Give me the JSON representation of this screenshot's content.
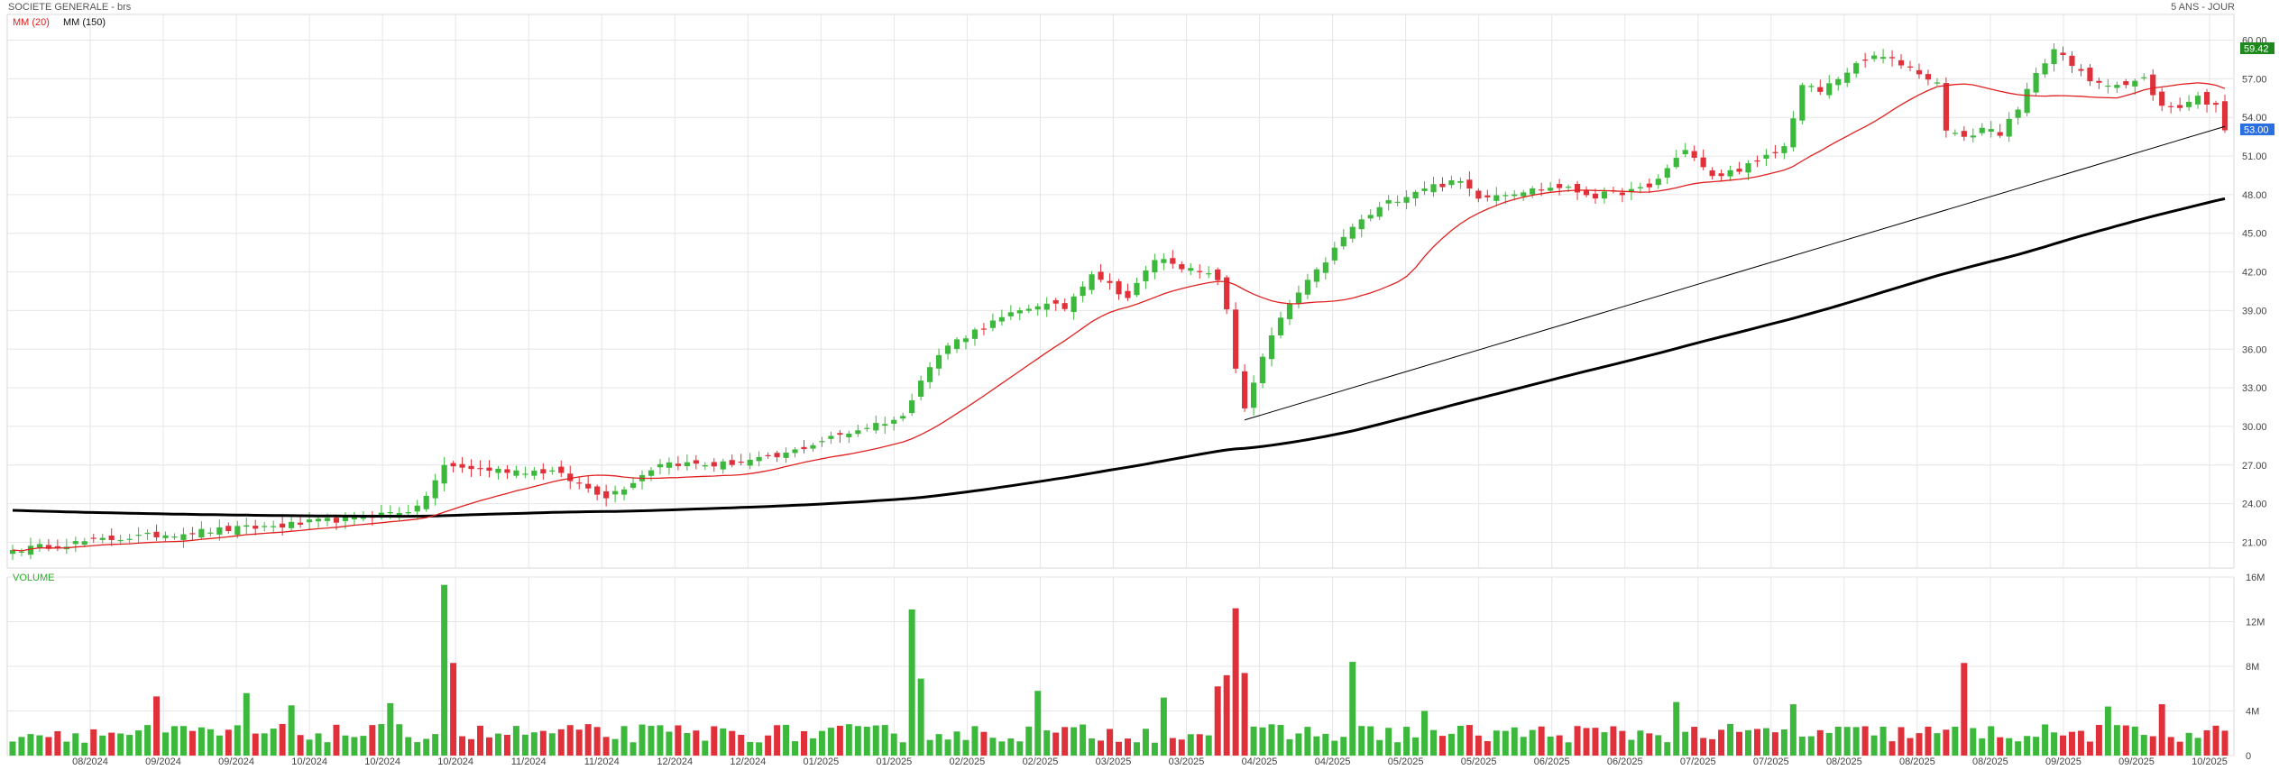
{
  "header": {
    "instrument": "SOCIETE GENERALE - brs",
    "range_label": "5 ANS - JOUR",
    "legend_ma20": "MM (20)",
    "legend_ma150": "MM (150)",
    "volume_label": "VOLUME"
  },
  "colors": {
    "up": "#3cb83c",
    "down": "#e0303a",
    "ma20": "#e02020",
    "ma150": "#000000",
    "trendline": "#000000",
    "grid": "#e6e6e6",
    "high_badge": "#1e8a1e",
    "last_badge": "#2a6fe0"
  },
  "chart_data": [
    {
      "type": "candlestick",
      "title": "SOCIETE GENERALE - brs",
      "y_axis_side": "right",
      "ylim": [
        19.0,
        62.0
      ],
      "y_ticks": [
        "21.00",
        "24.00",
        "27.00",
        "30.00",
        "33.00",
        "36.00",
        "39.00",
        "42.00",
        "45.00",
        "48.00",
        "51.00",
        "54.00",
        "57.00",
        "60.00"
      ],
      "x_tick_labels": [
        "08/2024",
        "09/2024",
        "09/2024",
        "10/2024",
        "10/2024",
        "10/2024",
        "11/2024",
        "11/2024",
        "12/2024",
        "12/2024",
        "01/2025",
        "01/2025",
        "02/2025",
        "02/2025",
        "03/2025",
        "03/2025",
        "04/2025",
        "04/2025",
        "05/2025",
        "05/2025",
        "06/2025",
        "06/2025",
        "07/2025",
        "07/2025",
        "08/2025",
        "08/2025",
        "08/2025",
        "09/2025",
        "09/2025",
        "10/2025"
      ],
      "price_badges": {
        "high": "59.42",
        "last": "53.00"
      },
      "close_anchors": [
        [
          0,
          20.4
        ],
        [
          10,
          21.2
        ],
        [
          20,
          21.8
        ],
        [
          30,
          22.3
        ],
        [
          38,
          22.9
        ],
        [
          45,
          23.6
        ],
        [
          48,
          26.9
        ],
        [
          54,
          26.6
        ],
        [
          60,
          26.5
        ],
        [
          63,
          25.5
        ],
        [
          66,
          24.6
        ],
        [
          68,
          25.3
        ],
        [
          72,
          27.2
        ],
        [
          78,
          27.0
        ],
        [
          85,
          27.6
        ],
        [
          90,
          28.9
        ],
        [
          96,
          30.2
        ],
        [
          99,
          30.7
        ],
        [
          101,
          33.8
        ],
        [
          104,
          36.3
        ],
        [
          108,
          37.8
        ],
        [
          114,
          39.5
        ],
        [
          117,
          39.2
        ],
        [
          120,
          42.0
        ],
        [
          124,
          40.0
        ],
        [
          127,
          43.0
        ],
        [
          129,
          42.8
        ],
        [
          131,
          42.1
        ],
        [
          134,
          41.5
        ],
        [
          135,
          38.9
        ],
        [
          136,
          34.5
        ],
        [
          137,
          31.5
        ],
        [
          138,
          33.5
        ],
        [
          140,
          37.0
        ],
        [
          142,
          39.5
        ],
        [
          145,
          42.0
        ],
        [
          149,
          45.5
        ],
        [
          153,
          47.4
        ],
        [
          157,
          48.6
        ],
        [
          161,
          49.0
        ],
        [
          163,
          47.9
        ],
        [
          168,
          48.3
        ],
        [
          172,
          48.6
        ],
        [
          176,
          47.9
        ],
        [
          182,
          48.5
        ],
        [
          186,
          51.6
        ],
        [
          189,
          49.3
        ],
        [
          194,
          50.5
        ],
        [
          197,
          51.7
        ],
        [
          199,
          56.5
        ],
        [
          201,
          56.0
        ],
        [
          204,
          57.6
        ],
        [
          207,
          58.8
        ],
        [
          210,
          58.2
        ],
        [
          212,
          57.5
        ],
        [
          214,
          56.6
        ],
        [
          215,
          53.2
        ],
        [
          217,
          52.3
        ],
        [
          219,
          53.2
        ],
        [
          221,
          52.8
        ],
        [
          223,
          54.5
        ],
        [
          225,
          57.6
        ],
        [
          227,
          59.3
        ],
        [
          229,
          58.0
        ],
        [
          231,
          56.9
        ],
        [
          233,
          56.7
        ],
        [
          235,
          56.5
        ],
        [
          237,
          57.0
        ],
        [
          239,
          54.8
        ],
        [
          241,
          54.9
        ],
        [
          243,
          55.6
        ],
        [
          245,
          54.8
        ],
        [
          246,
          53.0
        ]
      ],
      "moving_averages": [
        {
          "name": "MM (20)",
          "period": 20
        },
        {
          "name": "MM (150)",
          "period": 150
        }
      ],
      "trendline": {
        "from": [
          137,
          30.5
        ],
        "to": [
          246,
          53.3
        ]
      }
    },
    {
      "type": "bar",
      "title": "VOLUME",
      "ylim": [
        0,
        16000000
      ],
      "y_ticks": [
        "0",
        "4M",
        "8M",
        "12M",
        "16M"
      ],
      "spikes": [
        [
          16,
          5.3
        ],
        [
          26,
          5.6
        ],
        [
          31,
          4.5
        ],
        [
          42,
          4.7
        ],
        [
          48,
          15.3
        ],
        [
          49,
          8.3
        ],
        [
          100,
          13.1
        ],
        [
          101,
          6.9
        ],
        [
          114,
          5.8
        ],
        [
          128,
          5.2
        ],
        [
          134,
          6.2
        ],
        [
          135,
          7.2
        ],
        [
          136,
          13.2
        ],
        [
          137,
          7.4
        ],
        [
          149,
          8.4
        ],
        [
          157,
          4.0
        ],
        [
          185,
          4.8
        ],
        [
          198,
          4.6
        ],
        [
          217,
          8.3
        ],
        [
          233,
          4.4
        ],
        [
          239,
          4.6
        ]
      ],
      "base_volume_millions": 2.1
    }
  ]
}
